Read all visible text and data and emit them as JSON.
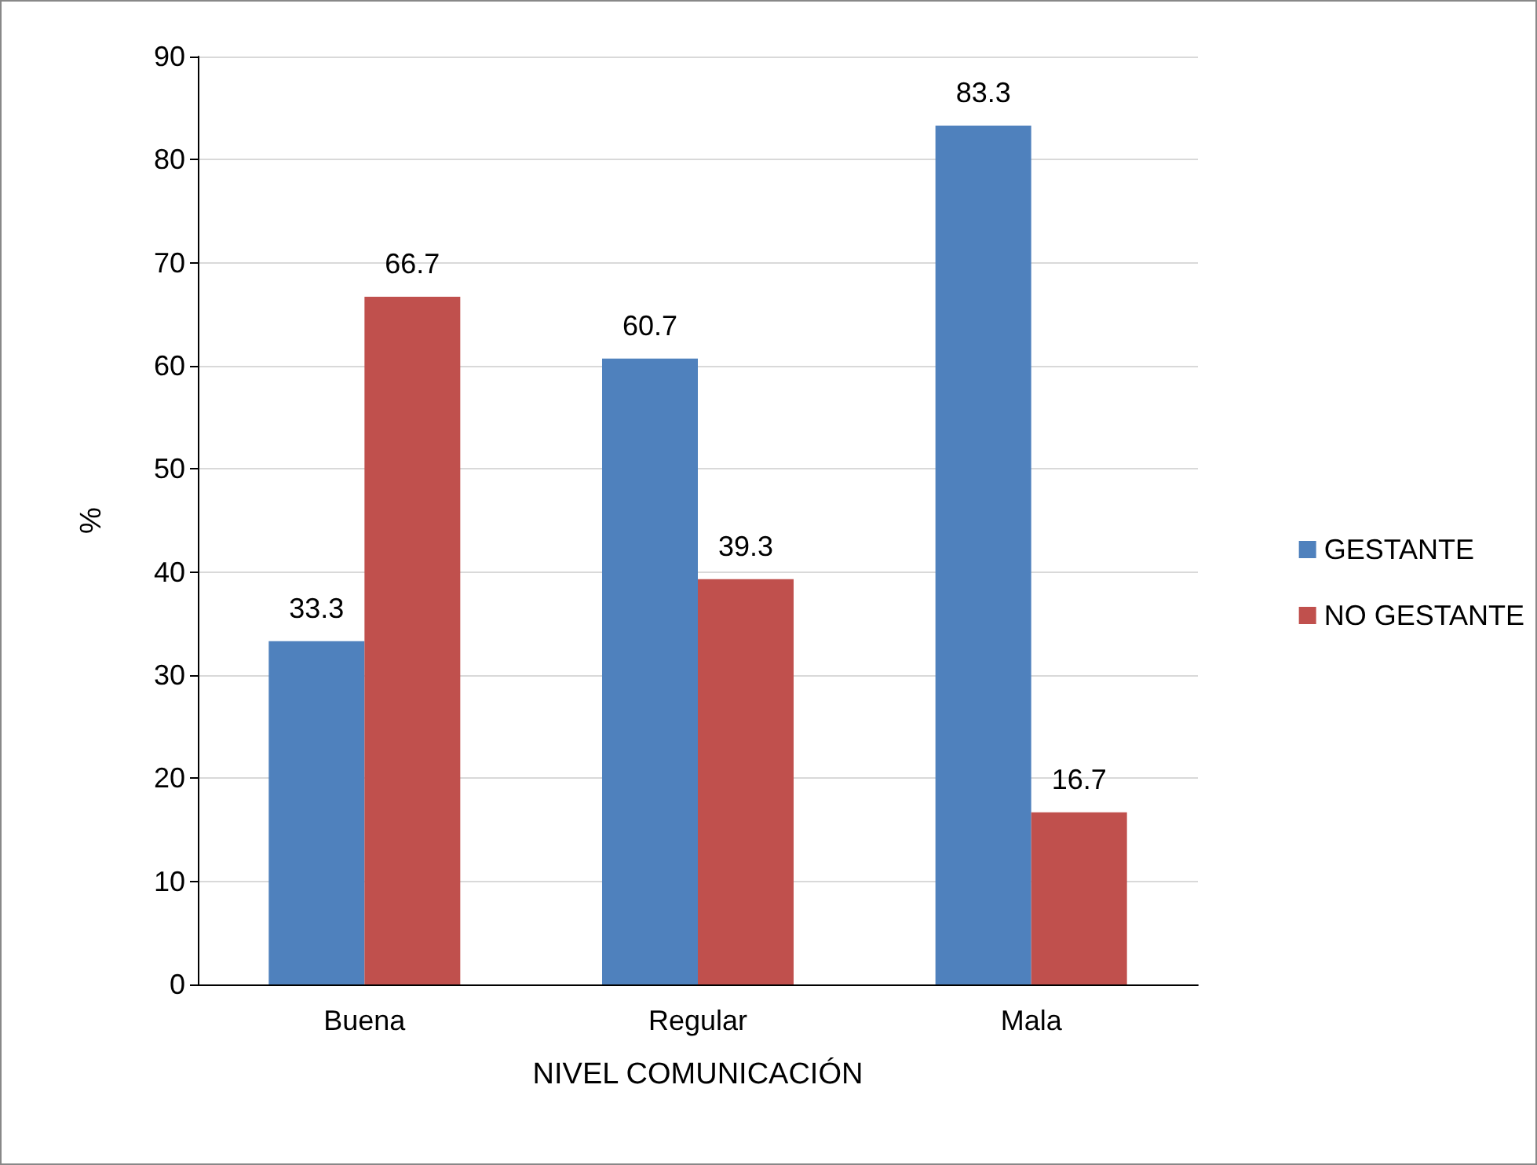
{
  "chart_data": {
    "type": "bar",
    "xlabel": "NIVEL COMUNICACIÓN",
    "ylabel": "%",
    "categories": [
      "Buena",
      "Regular",
      "Mala"
    ],
    "series": [
      {
        "name": "GESTANTE",
        "color": "#4f81bd",
        "values": [
          33.3,
          60.7,
          83.3
        ]
      },
      {
        "name": "NO GESTANTE",
        "color": "#c0504d",
        "values": [
          66.7,
          39.3,
          16.7
        ]
      }
    ],
    "ylim": [
      0,
      90
    ],
    "yticks": [
      0,
      10,
      20,
      30,
      40,
      50,
      60,
      70,
      80,
      90
    ],
    "grid": "y",
    "legend": "right",
    "data_labels": true
  }
}
